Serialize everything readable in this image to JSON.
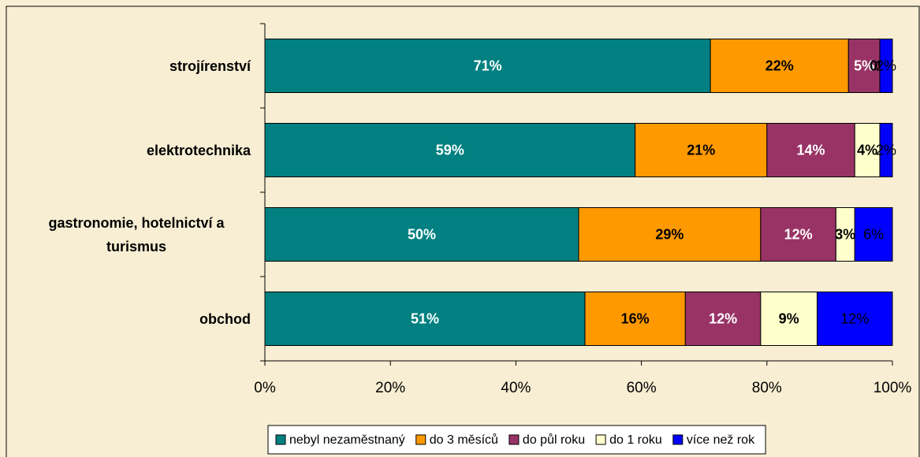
{
  "chart_data": {
    "type": "stacked_bar_horizontal",
    "categories": [
      "strojírenství",
      "elektrotechnika",
      "gastronomie, hotelnictví a turismus",
      "obchod"
    ],
    "series": [
      {
        "name": "nebyl nezaměstnaný",
        "color": "#008080",
        "label_color": "#ffffff",
        "values": [
          71,
          59,
          50,
          51
        ],
        "value_labels": [
          "71%",
          "59%",
          "50%",
          "51%"
        ]
      },
      {
        "name": "do 3 měsíců",
        "color": "#ff9900",
        "label_color": "#000000",
        "values": [
          22,
          21,
          29,
          16
        ],
        "value_labels": [
          "22%",
          "21%",
          "29%",
          "16%"
        ]
      },
      {
        "name": "do půl roku",
        "color": "#993366",
        "label_color": "#ffffff",
        "values": [
          5,
          14,
          12,
          12
        ],
        "value_labels": [
          "5%",
          "14%",
          "12%",
          "12%"
        ]
      },
      {
        "name": "do 1 roku",
        "color": "#ffffcc",
        "label_color": "#000000",
        "values": [
          0,
          4,
          3,
          9
        ],
        "value_labels": [
          "0%",
          "4%",
          "3%",
          "9%"
        ]
      },
      {
        "name": "více než rok",
        "color": "#0000ff",
        "label_color": "#000000",
        "values": [
          2,
          2,
          6,
          12
        ],
        "value_labels": [
          "2%",
          "2%",
          "6%",
          "12%"
        ]
      }
    ],
    "xlim": [
      0,
      100
    ],
    "xticks": [
      {
        "value": 0,
        "label": "0%"
      },
      {
        "value": 20,
        "label": "20%"
      },
      {
        "value": 40,
        "label": "40%"
      },
      {
        "value": 60,
        "label": "60%"
      },
      {
        "value": 80,
        "label": "80%"
      },
      {
        "value": 100,
        "label": "100%"
      }
    ],
    "legend": "bottom"
  }
}
